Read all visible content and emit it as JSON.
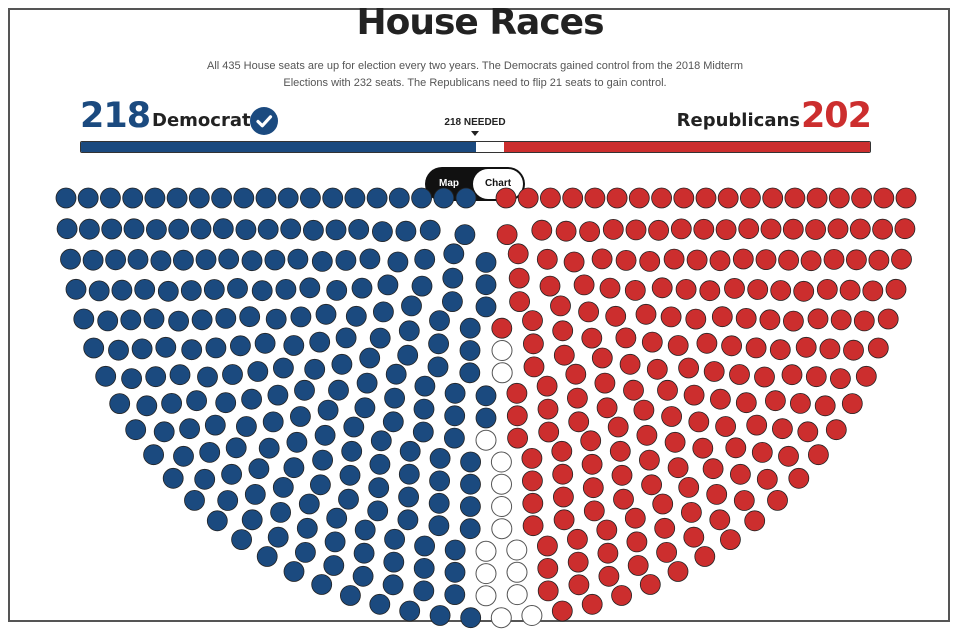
{
  "header": {
    "title": "House Races",
    "description": "All 435 House seats are up for election every two years. The Democrats gained control from the 2018 Midterm Elections with 232 seats. The Republicans need to flip 21 seats to gain control."
  },
  "tally": {
    "democrats": {
      "count": "218",
      "label": "Democrats",
      "color": "#1b4a7f",
      "icon": "check-circle-icon"
    },
    "republicans": {
      "count": "202",
      "label": "Republicans",
      "color": "#cc2e2e"
    },
    "needed_label": "218 NEEDED",
    "total_seats": 435,
    "dem_seats": 218,
    "rep_seats": 202,
    "undecided_seats": 15
  },
  "toggle": {
    "map_label": "Map",
    "chart_label": "Chart",
    "selected": "Chart"
  },
  "colors": {
    "democrat": "#1b4a7f",
    "republican": "#cc2e2e",
    "undecided": "#ffffff"
  }
}
